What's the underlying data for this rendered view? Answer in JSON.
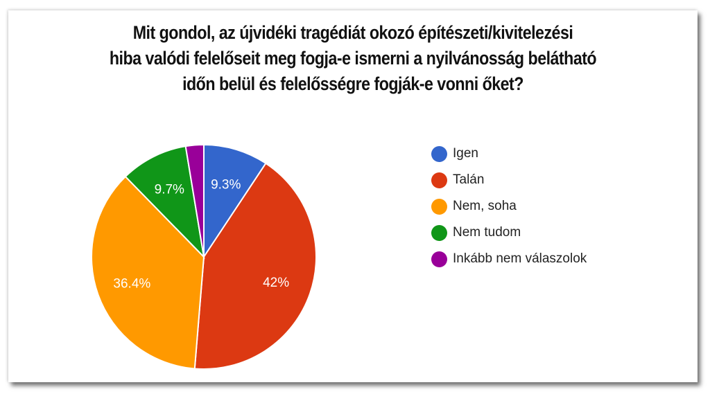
{
  "title": {
    "lines": [
      "Mit gondol, az újvidéki tragédiát okozó építészeti/kivitelezési",
      "hiba valódi felelőseit meg fogja-e ismerni a nyilvánosság belátható",
      "időn belül és felelősségre fogják-e vonni őket?"
    ]
  },
  "legend": {
    "items": [
      {
        "label": "Igen",
        "color": "#3366cc"
      },
      {
        "label": "Talán",
        "color": "#dc3912"
      },
      {
        "label": "Nem, soha",
        "color": "#ff9900"
      },
      {
        "label": "Nem tudom",
        "color": "#109618"
      },
      {
        "label": "Inkább nem válaszolok",
        "color": "#990099"
      }
    ]
  },
  "chart_data": {
    "type": "pie",
    "title": "Mit gondol, az újvidéki tragédiát okozó építészeti/kivitelezési hiba valódi felelőseit meg fogja-e ismerni a nyilvánosság belátható időn belül és felelősségre fogják-e vonni őket?",
    "categories": [
      "Igen",
      "Talán",
      "Nem, soha",
      "Nem tudom",
      "Inkább nem válaszolok"
    ],
    "values": [
      9.3,
      42.0,
      36.4,
      9.7,
      2.6
    ],
    "value_labels": [
      "9.3%",
      "42%",
      "36.4%",
      "9.7%",
      ""
    ],
    "colors": [
      "#3366cc",
      "#dc3912",
      "#ff9900",
      "#109618",
      "#990099"
    ],
    "legend_position": "right",
    "start_angle_deg": 0,
    "direction": "clockwise"
  }
}
